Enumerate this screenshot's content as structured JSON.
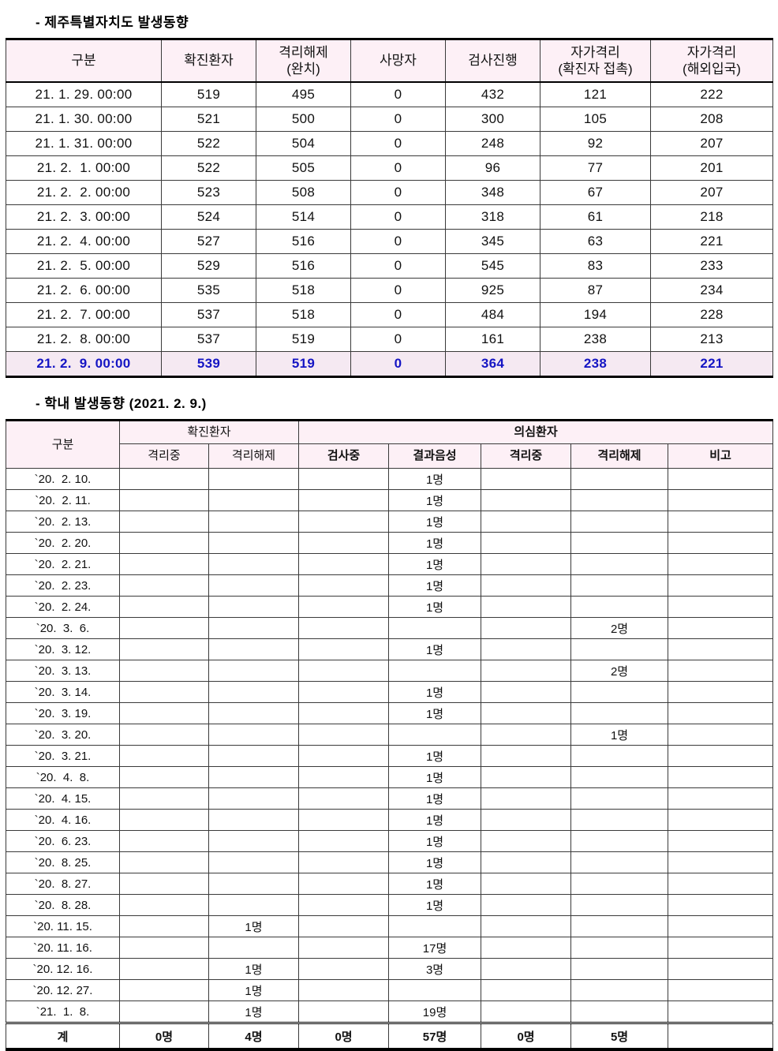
{
  "section1": {
    "title": "- 제주특별자치도 발생동향",
    "table": {
      "header_bg": "#fdf0f6",
      "highlight_bg": "#f5e9f2",
      "highlight_text_color": "#1515c4",
      "headers": [
        "구분",
        "확진환자",
        "격리해제\n(완치)",
        "사망자",
        "검사진행",
        "자가격리\n(확진자 접촉)",
        "자가격리\n(해외입국)"
      ],
      "rows": [
        {
          "date": "21. 1. 29. 00:00",
          "values": [
            "519",
            "495",
            "0",
            "432",
            "121",
            "222"
          ],
          "highlight": false
        },
        {
          "date": "21. 1. 30. 00:00",
          "values": [
            "521",
            "500",
            "0",
            "300",
            "105",
            "208"
          ],
          "highlight": false
        },
        {
          "date": "21. 1. 31. 00:00",
          "values": [
            "522",
            "504",
            "0",
            "248",
            "92",
            "207"
          ],
          "highlight": false
        },
        {
          "date": "21. 2.  1. 00:00",
          "values": [
            "522",
            "505",
            "0",
            "96",
            "77",
            "201"
          ],
          "highlight": false
        },
        {
          "date": "21. 2.  2. 00:00",
          "values": [
            "523",
            "508",
            "0",
            "348",
            "67",
            "207"
          ],
          "highlight": false
        },
        {
          "date": "21. 2.  3. 00:00",
          "values": [
            "524",
            "514",
            "0",
            "318",
            "61",
            "218"
          ],
          "highlight": false
        },
        {
          "date": "21. 2.  4. 00:00",
          "values": [
            "527",
            "516",
            "0",
            "345",
            "63",
            "221"
          ],
          "highlight": false
        },
        {
          "date": "21. 2.  5. 00:00",
          "values": [
            "529",
            "516",
            "0",
            "545",
            "83",
            "233"
          ],
          "highlight": false
        },
        {
          "date": "21. 2.  6. 00:00",
          "values": [
            "535",
            "518",
            "0",
            "925",
            "87",
            "234"
          ],
          "highlight": false
        },
        {
          "date": "21. 2.  7. 00:00",
          "values": [
            "537",
            "518",
            "0",
            "484",
            "194",
            "228"
          ],
          "highlight": false
        },
        {
          "date": "21. 2.  8. 00:00",
          "values": [
            "537",
            "519",
            "0",
            "161",
            "238",
            "213"
          ],
          "highlight": false
        },
        {
          "date": "21. 2.  9. 00:00",
          "values": [
            "539",
            "519",
            "0",
            "364",
            "238",
            "221"
          ],
          "highlight": true
        }
      ]
    }
  },
  "section2": {
    "title": "- 학내 발생동향 (2021. 2. 9.)",
    "table": {
      "header_bg": "#fdf0f6",
      "group_headers": {
        "gubun": "구분",
        "confirmed": "확진환자",
        "suspected": "의심환자"
      },
      "sub_headers": {
        "confirmed_quarantine": "격리중",
        "confirmed_released": "격리해제",
        "testing": "검사중",
        "negative": "결과음성",
        "suspected_quarantine": "격리중",
        "suspected_released": "격리해제",
        "note": "비고"
      },
      "rows": [
        {
          "date": "`20.  2. 10.",
          "cells": [
            "",
            "",
            "",
            "1명",
            "",
            "",
            ""
          ]
        },
        {
          "date": "`20.  2. 11.",
          "cells": [
            "",
            "",
            "",
            "1명",
            "",
            "",
            ""
          ]
        },
        {
          "date": "`20.  2. 13.",
          "cells": [
            "",
            "",
            "",
            "1명",
            "",
            "",
            ""
          ]
        },
        {
          "date": "`20.  2. 20.",
          "cells": [
            "",
            "",
            "",
            "1명",
            "",
            "",
            ""
          ]
        },
        {
          "date": "`20.  2. 21.",
          "cells": [
            "",
            "",
            "",
            "1명",
            "",
            "",
            ""
          ]
        },
        {
          "date": "`20.  2. 23.",
          "cells": [
            "",
            "",
            "",
            "1명",
            "",
            "",
            ""
          ]
        },
        {
          "date": "`20.  2. 24.",
          "cells": [
            "",
            "",
            "",
            "1명",
            "",
            "",
            ""
          ]
        },
        {
          "date": "`20.  3.  6.",
          "cells": [
            "",
            "",
            "",
            "",
            "",
            "2명",
            ""
          ]
        },
        {
          "date": "`20.  3. 12.",
          "cells": [
            "",
            "",
            "",
            "1명",
            "",
            "",
            ""
          ]
        },
        {
          "date": "`20.  3. 13.",
          "cells": [
            "",
            "",
            "",
            "",
            "",
            "2명",
            ""
          ]
        },
        {
          "date": "`20.  3. 14.",
          "cells": [
            "",
            "",
            "",
            "1명",
            "",
            "",
            ""
          ]
        },
        {
          "date": "`20.  3. 19.",
          "cells": [
            "",
            "",
            "",
            "1명",
            "",
            "",
            ""
          ]
        },
        {
          "date": "`20.  3. 20.",
          "cells": [
            "",
            "",
            "",
            "",
            "",
            "1명",
            ""
          ]
        },
        {
          "date": "`20.  3. 21.",
          "cells": [
            "",
            "",
            "",
            "1명",
            "",
            "",
            ""
          ]
        },
        {
          "date": "`20.  4.  8.",
          "cells": [
            "",
            "",
            "",
            "1명",
            "",
            "",
            ""
          ]
        },
        {
          "date": "`20.  4. 15.",
          "cells": [
            "",
            "",
            "",
            "1명",
            "",
            "",
            ""
          ]
        },
        {
          "date": "`20.  4. 16.",
          "cells": [
            "",
            "",
            "",
            "1명",
            "",
            "",
            ""
          ]
        },
        {
          "date": "`20.  6. 23.",
          "cells": [
            "",
            "",
            "",
            "1명",
            "",
            "",
            ""
          ]
        },
        {
          "date": "`20.  8. 25.",
          "cells": [
            "",
            "",
            "",
            "1명",
            "",
            "",
            ""
          ]
        },
        {
          "date": "`20.  8. 27.",
          "cells": [
            "",
            "",
            "",
            "1명",
            "",
            "",
            ""
          ]
        },
        {
          "date": "`20.  8. 28.",
          "cells": [
            "",
            "",
            "",
            "1명",
            "",
            "",
            ""
          ]
        },
        {
          "date": "`20. 11. 15.",
          "cells": [
            "",
            "1명",
            "",
            "",
            "",
            "",
            ""
          ]
        },
        {
          "date": "`20. 11. 16.",
          "cells": [
            "",
            "",
            "",
            "17명",
            "",
            "",
            ""
          ]
        },
        {
          "date": "`20. 12. 16.",
          "cells": [
            "",
            "1명",
            "",
            "3명",
            "",
            "",
            ""
          ]
        },
        {
          "date": "`20. 12. 27.",
          "cells": [
            "",
            "1명",
            "",
            "",
            "",
            "",
            ""
          ]
        },
        {
          "date": "`21.  1.  8.",
          "cells": [
            "",
            "1명",
            "",
            "19명",
            "",
            "",
            ""
          ]
        }
      ],
      "total": {
        "label": "계",
        "cells": [
          "0명",
          "4명",
          "0명",
          "57명",
          "0명",
          "5명",
          ""
        ]
      }
    }
  }
}
